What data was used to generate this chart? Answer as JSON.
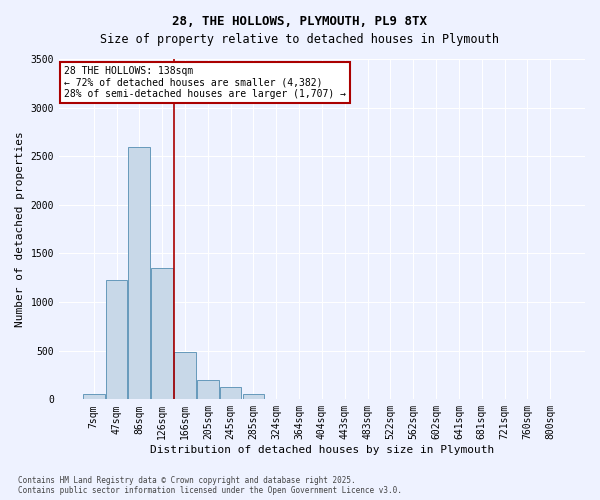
{
  "title": "28, THE HOLLOWS, PLYMOUTH, PL9 8TX",
  "subtitle": "Size of property relative to detached houses in Plymouth",
  "xlabel": "Distribution of detached houses by size in Plymouth",
  "ylabel": "Number of detached properties",
  "categories": [
    "7sqm",
    "47sqm",
    "86sqm",
    "126sqm",
    "166sqm",
    "205sqm",
    "245sqm",
    "285sqm",
    "324sqm",
    "364sqm",
    "404sqm",
    "443sqm",
    "483sqm",
    "522sqm",
    "562sqm",
    "602sqm",
    "641sqm",
    "681sqm",
    "721sqm",
    "760sqm",
    "800sqm"
  ],
  "values": [
    50,
    1230,
    2600,
    1350,
    490,
    200,
    130,
    50,
    0,
    0,
    0,
    0,
    0,
    0,
    0,
    0,
    0,
    0,
    0,
    0,
    0
  ],
  "bar_color": "#c8d8e8",
  "bar_edge_color": "#6699bb",
  "vline_x": 3.5,
  "vline_color": "#aa0000",
  "annotation_text": "28 THE HOLLOWS: 138sqm\n← 72% of detached houses are smaller (4,382)\n28% of semi-detached houses are larger (1,707) →",
  "annotation_box_color": "#ffffff",
  "annotation_box_edge": "#aa0000",
  "background_color": "#eef2ff",
  "grid_color": "#ffffff",
  "footer": "Contains HM Land Registry data © Crown copyright and database right 2025.\nContains public sector information licensed under the Open Government Licence v3.0.",
  "ylim": [
    0,
    3500
  ],
  "yticks": [
    0,
    500,
    1000,
    1500,
    2000,
    2500,
    3000,
    3500
  ],
  "title_fontsize": 9,
  "axis_fontsize": 8,
  "tick_fontsize": 7
}
